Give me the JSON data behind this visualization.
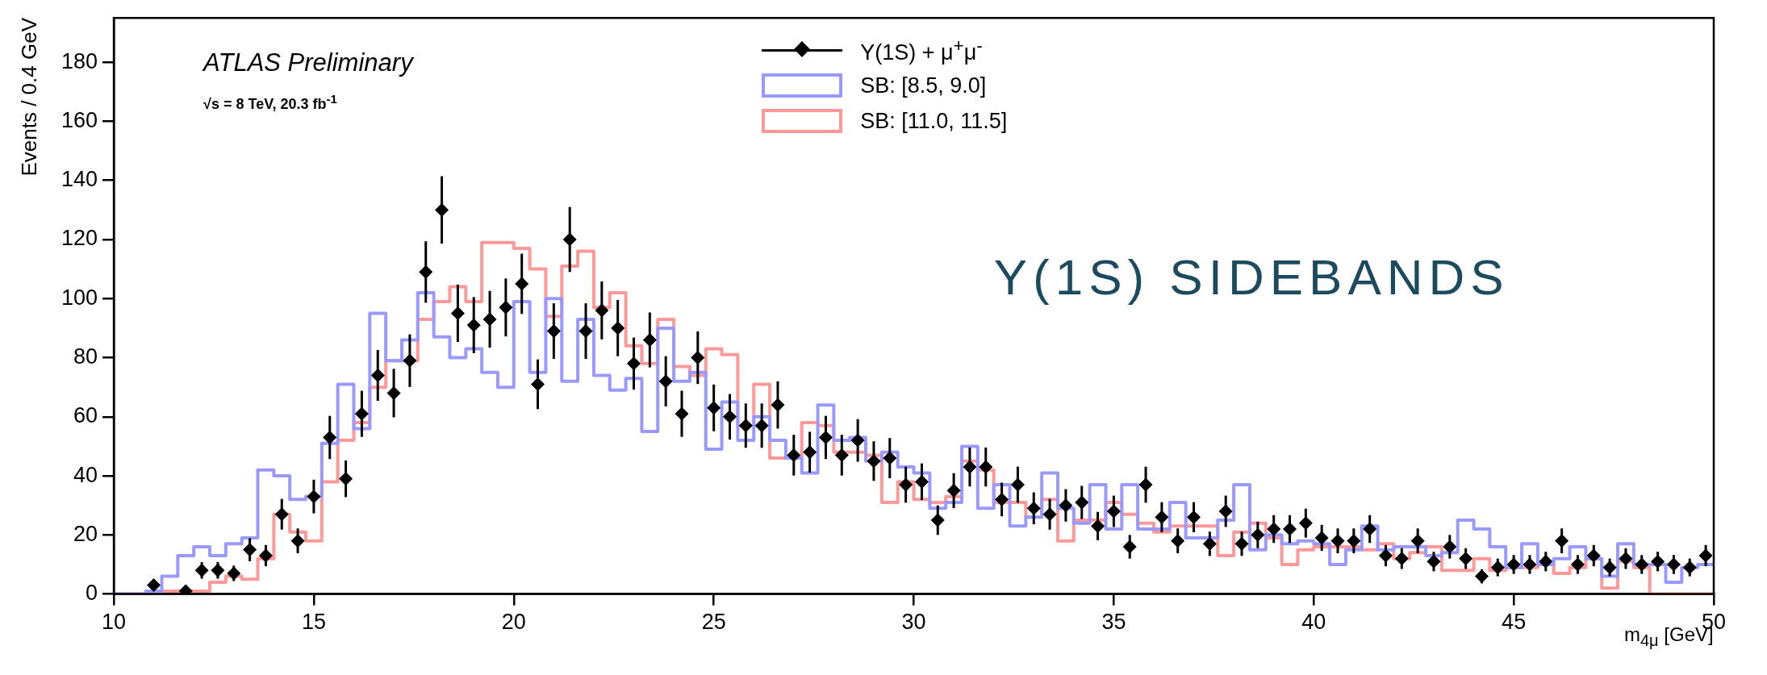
{
  "chart_data": {
    "type": "histogram",
    "xlabel": "m$_{4μ}$ [GeV]",
    "ylabel": "Events / 0.4 GeV",
    "annotations": [
      "ATLAS Preliminary",
      "√s = 8 TeV, 20.3 fb$^{-1}$",
      "Υ(1S) SIDEBANDS"
    ],
    "bins": [
      10,
      10.4,
      10.8,
      11.2,
      11.6,
      12,
      12.4,
      12.8,
      13.2,
      13.6,
      14,
      14.4,
      14.8,
      15.2,
      15.6,
      16,
      16.4,
      16.8,
      17.2,
      17.6,
      18,
      18.4,
      18.8,
      19.2,
      19.6,
      20,
      20.4,
      20.8,
      21.2,
      21.6,
      22,
      22.4,
      22.8,
      23.2,
      23.6,
      24,
      24.4,
      24.8,
      25.2,
      25.6,
      26,
      26.4,
      26.8,
      27.2,
      27.6,
      28,
      28.4,
      28.8,
      29.2,
      29.6,
      30,
      30.4,
      30.8,
      31.2,
      31.6,
      32,
      32.4,
      32.8,
      33.2,
      33.6,
      34,
      34.4,
      34.8,
      35.2,
      35.6,
      36,
      36.4,
      36.8,
      37.2,
      37.6,
      38,
      38.4,
      38.8,
      39.2,
      39.6,
      40,
      40.4,
      40.8,
      41.2,
      41.6,
      42,
      42.4,
      42.8,
      43.2,
      43.6,
      44,
      44.4,
      44.8,
      45.2,
      45.6,
      46,
      46.4,
      46.8,
      47.2,
      47.6,
      48,
      48.4,
      48.8,
      49.2,
      49.6,
      50
    ],
    "series": [
      {
        "name": "Υ(1S) + μ$^{+}$μ$^{-}$",
        "type": "scatter",
        "color": "#000000",
        "x": [
          null,
          null,
          11,
          null,
          11.8,
          12.2,
          12.6,
          13,
          13.4,
          13.8,
          14.2,
          14.6,
          15,
          15.4,
          15.8,
          16.2,
          16.6,
          17,
          17.4,
          17.8,
          18.2,
          18.6,
          19,
          19.4,
          19.8,
          20.2,
          20.6,
          21,
          21.4,
          21.8,
          22.2,
          22.6,
          23,
          23.4,
          23.8,
          24.2,
          24.6,
          25,
          25.4,
          25.8,
          26.2,
          26.6,
          27,
          27.4,
          27.8,
          28.2,
          28.6,
          29,
          29.4,
          29.8,
          30.2,
          30.6,
          31,
          31.4,
          31.8,
          32.2,
          32.6,
          33,
          33.4,
          33.8,
          34.2,
          34.6,
          35,
          35.4,
          35.8,
          36.2,
          36.6,
          37,
          37.4,
          37.8,
          38.2,
          38.6,
          39,
          39.4,
          39.8,
          40.2,
          40.6,
          41,
          41.4,
          41.8,
          42.2,
          42.6,
          43,
          43.4,
          43.8,
          44.2,
          44.6,
          45,
          45.4,
          45.8,
          46.2,
          46.6,
          47,
          47.4,
          47.8,
          48.2,
          48.6,
          49,
          49.4,
          49.8
        ],
        "values": [
          null,
          null,
          3,
          null,
          1,
          8,
          8,
          7,
          15,
          13,
          27,
          18,
          33,
          53,
          39,
          61,
          74,
          68,
          79,
          109,
          130,
          95,
          91,
          93,
          97,
          105,
          71,
          89,
          120,
          89,
          96,
          90,
          78,
          86,
          72,
          61,
          80,
          63,
          60,
          57,
          57,
          64,
          47,
          48,
          53,
          47,
          52,
          45,
          46,
          37,
          38,
          25,
          35,
          43,
          43,
          32,
          37,
          29,
          27,
          30,
          31,
          23,
          28,
          16,
          37,
          26,
          18,
          26,
          17,
          28,
          17,
          20,
          22,
          22,
          24,
          19,
          18,
          18,
          22,
          13,
          12,
          18,
          11,
          16,
          12,
          6,
          9,
          10,
          10,
          11,
          18,
          10,
          13,
          9,
          12,
          10,
          11,
          10,
          9,
          13
        ],
        "errors": [
          null,
          null,
          1.7,
          null,
          1,
          2.8,
          2.8,
          2.6,
          3.9,
          3.6,
          5.2,
          4.2,
          5.7,
          7.3,
          6.2,
          7.8,
          8.6,
          8.2,
          8.9,
          10.4,
          11.4,
          9.7,
          9.5,
          9.6,
          9.8,
          10.2,
          8.4,
          9.4,
          11,
          9.4,
          9.8,
          9.5,
          8.8,
          9.3,
          8.5,
          7.8,
          8.9,
          7.9,
          7.7,
          7.5,
          7.5,
          8,
          6.9,
          6.9,
          7.3,
          6.9,
          7.2,
          6.7,
          6.8,
          6.1,
          6.2,
          5,
          5.9,
          6.6,
          6.6,
          5.7,
          6.1,
          5.4,
          5.2,
          5.5,
          5.6,
          4.8,
          5.3,
          4,
          6.1,
          5.1,
          4.2,
          5.1,
          4.1,
          5.3,
          4.1,
          4.5,
          4.7,
          4.7,
          4.9,
          4.4,
          4.2,
          4.2,
          4.7,
          3.6,
          3.5,
          4.2,
          3.3,
          4,
          3.5,
          2.4,
          3,
          3.2,
          3.2,
          3.3,
          4.2,
          3.2,
          3.6,
          3,
          3.5,
          3.2,
          3.3,
          3.2,
          3,
          3.6
        ]
      },
      {
        "name": "SB: [8.5, 9.0]",
        "color": "#9999ff",
        "values": [
          0,
          0,
          1,
          6,
          13,
          16,
          13,
          17,
          19,
          42,
          40,
          32,
          33,
          51,
          71,
          56,
          95,
          79,
          86,
          102,
          87,
          80,
          83,
          75,
          70,
          99,
          75,
          100,
          72,
          93,
          74,
          69,
          73,
          55,
          90,
          72,
          75,
          49,
          65,
          52,
          60,
          52,
          46,
          41,
          64,
          52,
          53,
          45,
          48,
          43,
          41,
          29,
          31,
          50,
          29,
          37,
          23,
          26,
          41,
          29,
          24,
          37,
          22,
          37,
          22,
          22,
          31,
          19,
          19,
          25,
          37,
          15,
          20,
          17,
          18,
          17,
          10,
          15,
          23,
          15,
          16,
          16,
          13,
          14,
          25,
          22,
          16,
          9,
          17,
          10,
          12,
          16,
          12,
          6,
          17,
          10,
          10,
          4,
          9,
          10
        ]
      },
      {
        "name": "SB: [11.0, 11.5]",
        "color": "#ff9999",
        "values": [
          0,
          0,
          0,
          1,
          1,
          1,
          4,
          6,
          5,
          12,
          27,
          21,
          18,
          38,
          52,
          58,
          70,
          79,
          79,
          93,
          99,
          104,
          99,
          119,
          119,
          117,
          110,
          94,
          111,
          116,
          97,
          102,
          84,
          78,
          93,
          77,
          74,
          83,
          81,
          57,
          71,
          46,
          46,
          58,
          57,
          48,
          48,
          47,
          31,
          38,
          32,
          31,
          33,
          45,
          42,
          31,
          31,
          26,
          32,
          18,
          25,
          25,
          31,
          27,
          24,
          21,
          23,
          23,
          23,
          13,
          21,
          24,
          19,
          10,
          15,
          16,
          16,
          16,
          15,
          17,
          12,
          14,
          16,
          8,
          8,
          12,
          8,
          9,
          9,
          10,
          7,
          9,
          12,
          2,
          11,
          9,
          0,
          0,
          0,
          0
        ]
      }
    ],
    "marker": "diamond",
    "xlim": [
      10,
      50
    ],
    "xticks": [
      10,
      15,
      20,
      25,
      30,
      35,
      40,
      45,
      50
    ],
    "ylim": [
      0,
      195
    ],
    "yticks": [
      0,
      20,
      40,
      60,
      80,
      100,
      120,
      140,
      160,
      180
    ],
    "grid": false,
    "legend": "top right"
  }
}
